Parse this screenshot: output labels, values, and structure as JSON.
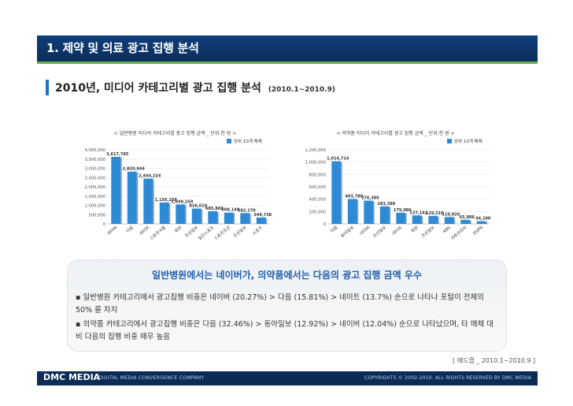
{
  "header": {
    "title": "1. 제약 및 의료 광고 집행 분석"
  },
  "subheader": {
    "title": "2010년, 미디어 카테고리별 광고 집행 분석",
    "period": "(2010.1~2010.9)"
  },
  "chart_data": [
    {
      "type": "bar",
      "title": "< 일반병원 미디어 카테고리별 광고 집행 금액 _ 단위:천 원 >",
      "legend": "상위 10개 매체",
      "legend_position": "top-right",
      "categories": [
        "네이버",
        "다음",
        "네이트",
        "스포츠서울",
        "파란",
        "조선일보",
        "일간스포츠",
        "스포츠조선",
        "조선일보",
        "스포츠"
      ],
      "values": [
        3617785,
        2820944,
        2444224,
        1156158,
        1049259,
        826610,
        685800,
        608149,
        582170,
        344738
      ],
      "value_labels": [
        "3,617,785",
        "2,820,944",
        "2,444,224",
        "1,156,158",
        "1,049,259",
        "826,610",
        "685,800",
        "608,149",
        "582,170",
        "344,738"
      ],
      "yticks": [
        "4,000,000",
        "3,500,000",
        "3,000,000",
        "2,500,000",
        "2,000,000",
        "1,500,000",
        "1,000,000",
        "500,000",
        "0"
      ],
      "ylim": [
        0,
        4000000
      ],
      "colors": {
        "top": "#2f8ad6",
        "bar": "#2f8ad6",
        "dark": "#1f5f9f"
      }
    },
    {
      "type": "bar",
      "title": "< 의약품 미디어 카테고리별 광고 집행 금액 _ 단위:천 원 >",
      "legend": "상위 10개 매체",
      "legend_position": "top-right",
      "categories": [
        "다음",
        "동아일보",
        "네이버",
        "조선일보",
        "네이트",
        "파란",
        "조선일보",
        "KBS",
        "야후코리아",
        "ESPN"
      ],
      "values": [
        1014714,
        403780,
        376389,
        283388,
        179986,
        137142,
        129510,
        110020,
        65888,
        44100
      ],
      "value_labels": [
        "1,014,714",
        "403,780",
        "376,389",
        "283,388",
        "179,986",
        "137,142",
        "129,510",
        "110,020",
        "65,888",
        "44,100"
      ],
      "yticks": [
        "1,200,000",
        "1,000,000",
        "800,000",
        "600,000",
        "400,000",
        "200,000",
        "0"
      ],
      "ylim": [
        0,
        1200000
      ],
      "colors": {
        "top": "#2f8ad6",
        "bar": "#2f8ad6",
        "dark": "#1f5f9f"
      }
    }
  ],
  "summary": {
    "title": "일반병원에서는 네이버가, 의약품에서는 다음의 광고 집행 금액 우수",
    "bullets": [
      "▪ 일반병원 카테고리에서 광고집행 비중은 네이버 (20.27%) > 다음 (15.81%) > 네이트 (13.7%) 순으로 나타나 포털이 전체의 50% 를 차지",
      "▪ 의약품 카테고리에서 광고집행 비중은 다음 (32.46%) > 동아일보 (12.92%) > 네이버 (12.04%) 순으로 나타났으며, 타 매체 대비 다음의 집행 비중 매우 높음"
    ]
  },
  "source": "[ 애드캡 _ 2010.1~2010.9 ]",
  "footer": {
    "logo": "DMC MEDIA",
    "tagline": "DIGITAL MEDIA CONVERGENCE COMPANY",
    "copyright": "COPYRIGHTS © 2002-2010. ALL RIGHTS RESERVED BY DMC MEDIA"
  }
}
